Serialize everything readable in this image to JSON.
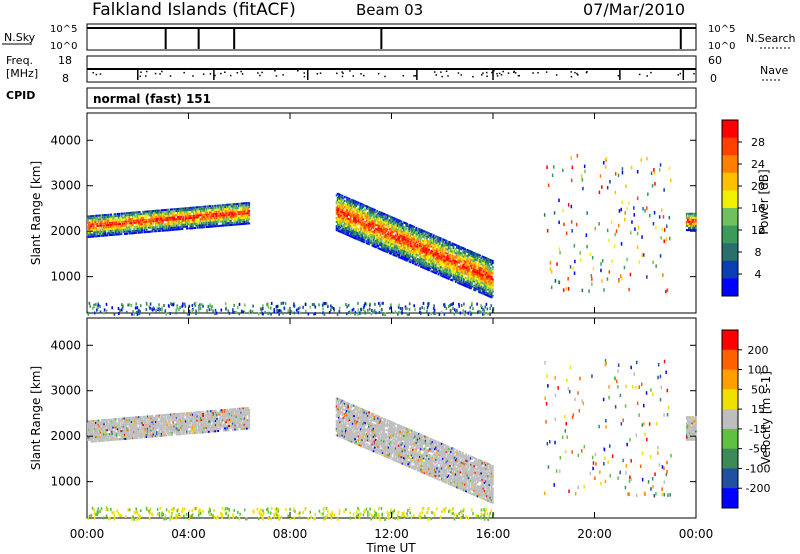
{
  "header": {
    "title": "Falkland Islands (fitACF)",
    "beam": "Beam 03",
    "date": "07/Mar/2010"
  },
  "strips": {
    "nsky_label": "N.Sky",
    "nsky_top": "10^5",
    "nsky_bottom": "10^0",
    "nsearch_label": "N.Search",
    "nsearch_top": "10^5",
    "nsearch_bottom": "10^0",
    "freq_label": "Freq.",
    "freq_unit": "[MHz]",
    "freq_top": "18",
    "freq_bottom": "8",
    "nave_label": "Nave",
    "nave_top": "60",
    "nave_bottom": "0",
    "cpid_label": "CPID",
    "cpid_value": "normal (fast) 151"
  },
  "chart_data": [
    {
      "type": "heatmap",
      "title": "",
      "xlabel": "Time UT",
      "ylabel": "Slant Range [km]",
      "x_ticks": [
        "00:00",
        "04:00",
        "08:00",
        "12:00",
        "16:00",
        "20:00",
        "00:00"
      ],
      "y_ticks": [
        1000,
        2000,
        3000,
        4000
      ],
      "ylim": [
        200,
        4600
      ],
      "colorbar": {
        "label": "Power [dB]",
        "ticks": [
          "4",
          "8",
          "12",
          "16",
          "20",
          "24",
          "28"
        ],
        "colors": [
          "#0000ff",
          "#0a3fb4",
          "#2a6e6e",
          "#3c9a5a",
          "#70c060",
          "#f0f000",
          "#ffc000",
          "#ff8000",
          "#ff4000",
          "#ff0000"
        ]
      },
      "echo_bands": [
        {
          "t_start_h": 0.0,
          "t_end_h": 6.4,
          "range_low_km": 1900,
          "range_high_km": 2500,
          "peak": "28"
        },
        {
          "t_start_h": 9.8,
          "t_end_h": 16.0,
          "range_low_km": 800,
          "range_high_km": 2700,
          "peak": "28"
        },
        {
          "t_start_h": 23.6,
          "t_end_h": 24.0,
          "range_low_km": 2000,
          "range_high_km": 2400,
          "peak": "24"
        }
      ]
    },
    {
      "type": "heatmap",
      "title": "",
      "xlabel": "Time UT",
      "ylabel": "Slant Range [km]",
      "x_ticks": [
        "00:00",
        "04:00",
        "08:00",
        "12:00",
        "16:00",
        "20:00",
        "00:00"
      ],
      "y_ticks": [
        1000,
        2000,
        3000,
        4000
      ],
      "ylim": [
        200,
        4600
      ],
      "colorbar": {
        "label": "Velocity [m s-1]",
        "ticks": [
          "200",
          "100",
          "50",
          "15",
          "-15",
          "-50",
          "-100",
          "-200"
        ],
        "colors": [
          "#0000ff",
          "#2050a0",
          "#3c8a5a",
          "#60c040",
          "#bebebe",
          "#f0e000",
          "#ffa000",
          "#ff6000",
          "#ff0000"
        ]
      },
      "echo_bands": [
        {
          "t_start_h": 0.0,
          "t_end_h": 6.4,
          "range_low_km": 1900,
          "range_high_km": 2800,
          "dominant": "-15 to 15"
        },
        {
          "t_start_h": 9.8,
          "t_end_h": 16.0,
          "range_low_km": 700,
          "range_high_km": 2700,
          "dominant": "-15 to 15"
        },
        {
          "t_start_h": 23.6,
          "t_end_h": 24.0,
          "range_low_km": 1900,
          "range_high_km": 2400,
          "dominant": "-15 to 15"
        }
      ]
    }
  ]
}
